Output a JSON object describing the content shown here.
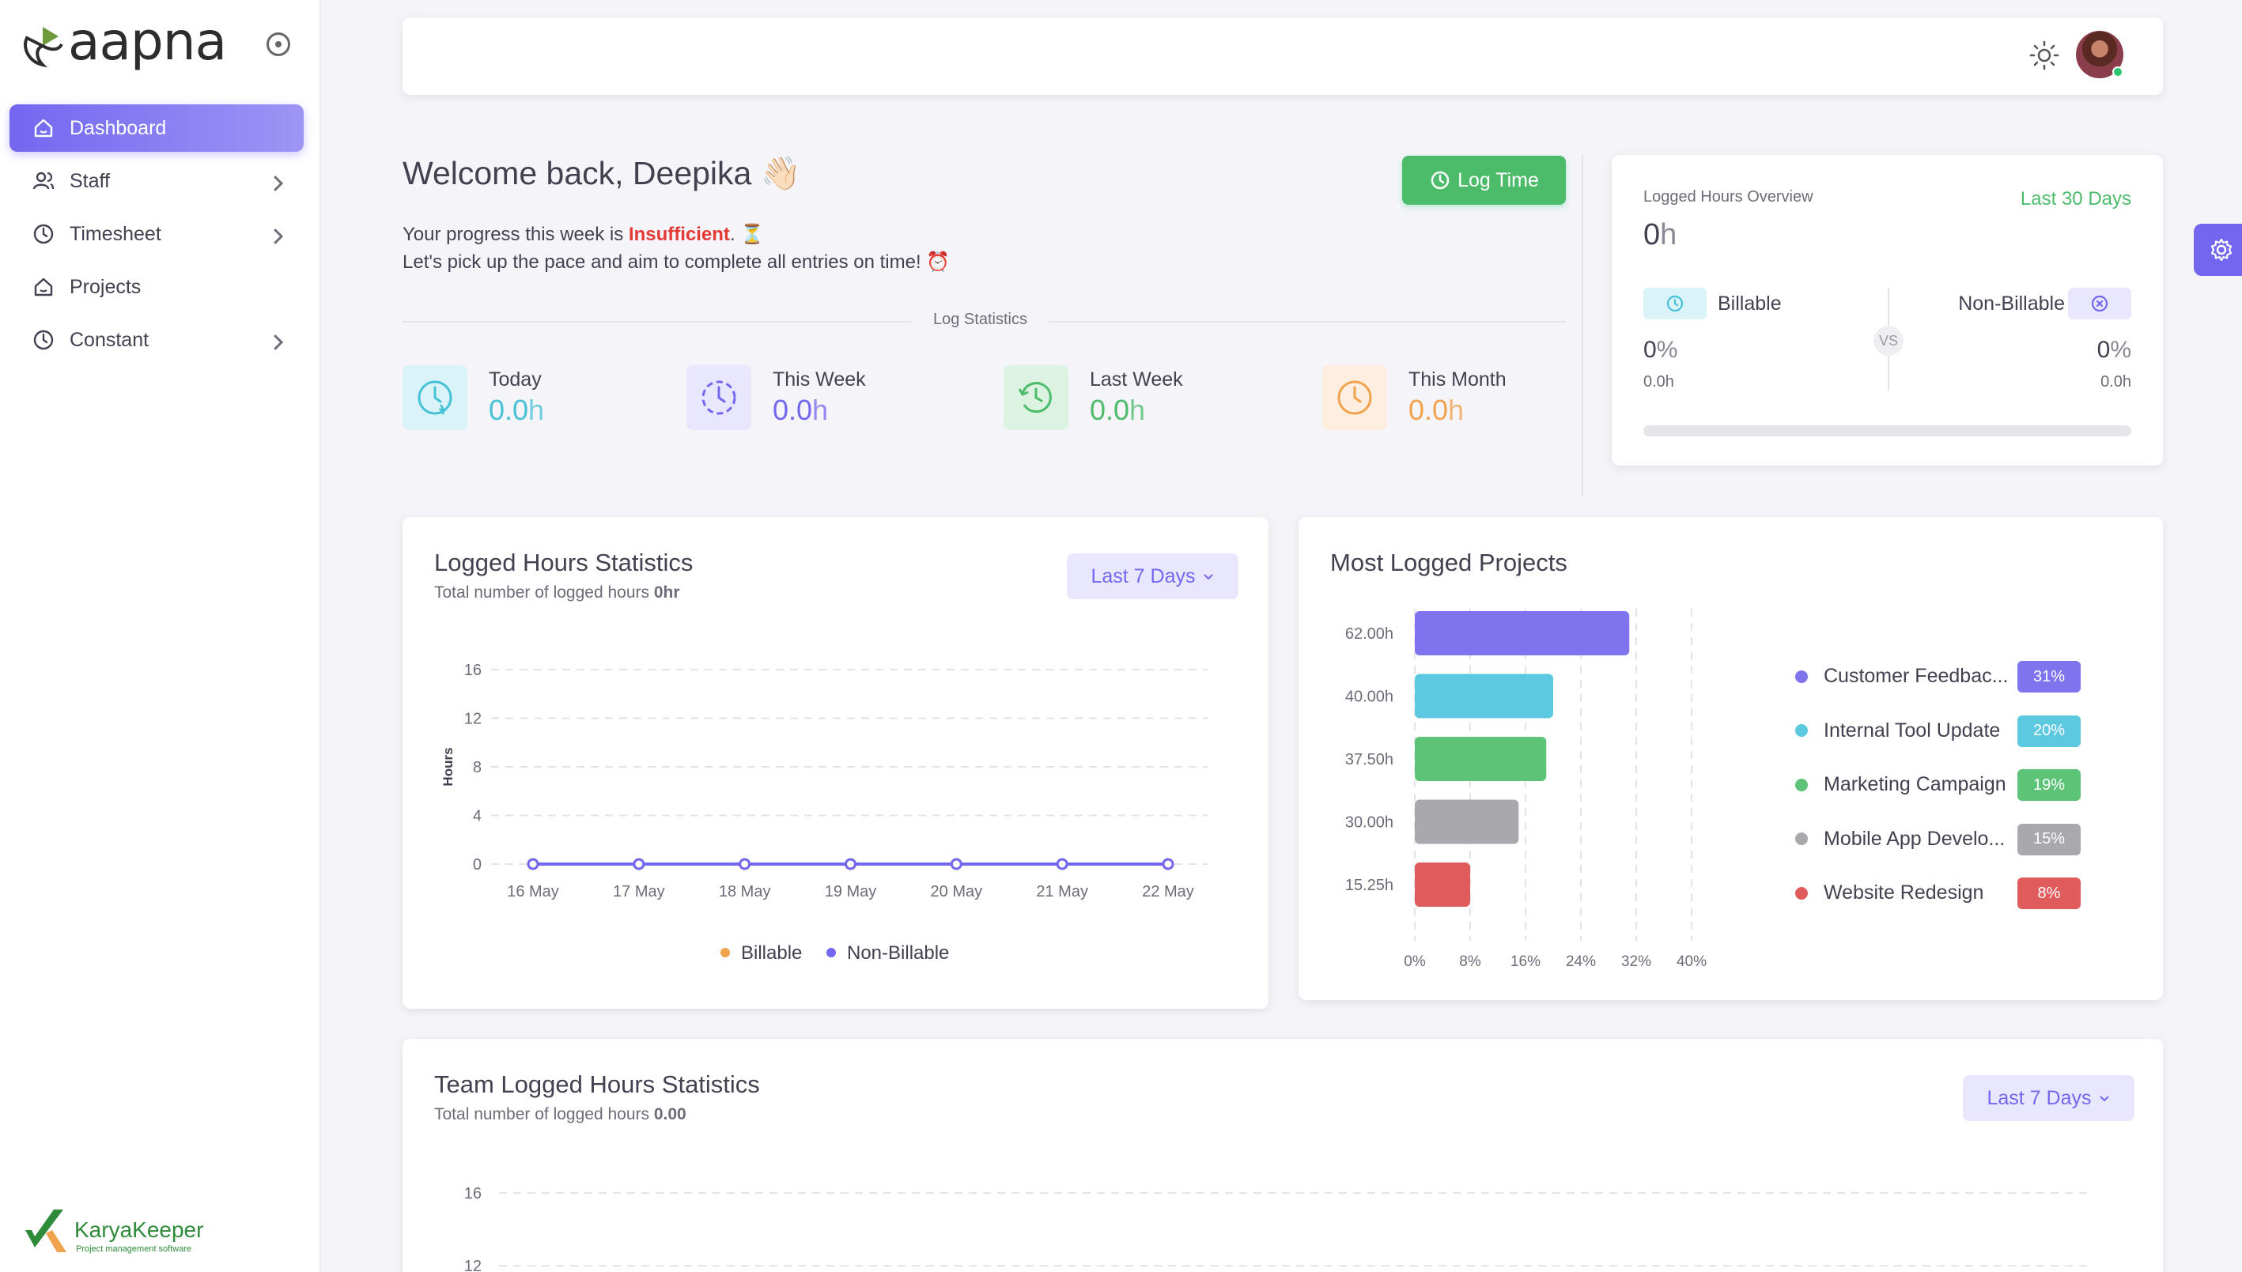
{
  "brand": {
    "logo_text": "aapna",
    "footer_logo": "KaryaKeeper",
    "footer_tagline": "Project management software"
  },
  "sidebar": {
    "items": [
      {
        "label": "Dashboard",
        "icon": "home-icon",
        "active": true,
        "has_children": false
      },
      {
        "label": "Staff",
        "icon": "users-icon",
        "active": false,
        "has_children": true
      },
      {
        "label": "Timesheet",
        "icon": "clock-icon",
        "active": false,
        "has_children": true
      },
      {
        "label": "Projects",
        "icon": "home-icon",
        "active": false,
        "has_children": false
      },
      {
        "label": "Constant",
        "icon": "clock-icon",
        "active": false,
        "has_children": true
      }
    ]
  },
  "welcome": {
    "title": "Welcome back, Deepika 👋🏻",
    "progress_prefix": "Your progress this week is ",
    "progress_status": "Insufficient",
    "progress_suffix": ". ⏳",
    "pace_text": "Let's pick up the pace and aim to complete all entries on time! ⏰",
    "log_time_label": "Log Time"
  },
  "log_statistics": {
    "label": "Log Statistics",
    "items": [
      {
        "label": "Today",
        "value": "0.0",
        "unit": "h",
        "color": "#47c1d6"
      },
      {
        "label": "This Week",
        "value": "0.0",
        "unit": "h",
        "color": "#7367f0"
      },
      {
        "label": "Last Week",
        "value": "0.0",
        "unit": "h",
        "color": "#4cbb6a"
      },
      {
        "label": "This Month",
        "value": "0.0",
        "unit": "h",
        "color": "#f0a24c"
      }
    ]
  },
  "overview": {
    "title": "Logged Hours Overview",
    "range": "Last 30 Days",
    "total_value": "0",
    "total_unit": "h",
    "billable": {
      "label": "Billable",
      "pct_value": "0",
      "pct_unit": "%",
      "hours": "0.0h"
    },
    "non_billable": {
      "label": "Non-Billable",
      "pct_value": "0",
      "pct_unit": "%",
      "hours": "0.0h"
    },
    "vs": "VS"
  },
  "hours_card": {
    "title": "Logged Hours Statistics",
    "subtitle_prefix": "Total number of logged hours ",
    "subtitle_value": "0hr",
    "range": "Last 7 Days"
  },
  "team_card": {
    "title": "Team Logged Hours Statistics",
    "subtitle_prefix": "Total number of logged hours ",
    "subtitle_value": "0.00",
    "range": "Last 7 Days"
  },
  "projects_card": {
    "title": "Most Logged Projects"
  },
  "chart_data": [
    {
      "type": "line",
      "title": "Logged Hours Statistics",
      "ylabel": "Hours",
      "x": [
        "16 May",
        "17 May",
        "18 May",
        "19 May",
        "20 May",
        "21 May",
        "22 May"
      ],
      "ylim": [
        0,
        16
      ],
      "yticks": [
        0,
        4,
        8,
        12,
        16
      ],
      "grid": true,
      "legend_position": "bottom",
      "series": [
        {
          "name": "Billable",
          "color": "#f0a24c",
          "values": [
            0,
            0,
            0,
            0,
            0,
            0,
            0
          ]
        },
        {
          "name": "Non-Billable",
          "color": "#7367f0",
          "values": [
            0,
            0,
            0,
            0,
            0,
            0,
            0
          ]
        }
      ]
    },
    {
      "type": "bar",
      "orientation": "horizontal",
      "title": "Most Logged Projects",
      "categories": [
        "62.00h",
        "40.00h",
        "37.50h",
        "30.00h",
        "15.25h"
      ],
      "values": [
        31,
        20,
        19,
        15,
        8
      ],
      "xticks": [
        "0%",
        "8%",
        "16%",
        "24%",
        "32%",
        "40%"
      ],
      "xlim": [
        0,
        40
      ],
      "legend_position": "right",
      "legend": [
        {
          "name": "Customer Feedbac...",
          "pct": "31%",
          "color": "#7f74ed"
        },
        {
          "name": "Internal Tool Update",
          "pct": "20%",
          "color": "#5cc9e0"
        },
        {
          "name": "Marketing Campaign",
          "pct": "19%",
          "color": "#5cc377"
        },
        {
          "name": "Mobile App Develo...",
          "pct": "15%",
          "color": "#a8a8ad"
        },
        {
          "name": "Website Redesign",
          "pct": "8%",
          "color": "#e05c5c"
        }
      ]
    },
    {
      "type": "line",
      "title": "Team Logged Hours Statistics",
      "yticks_visible": [
        16,
        12
      ],
      "grid": true
    }
  ]
}
